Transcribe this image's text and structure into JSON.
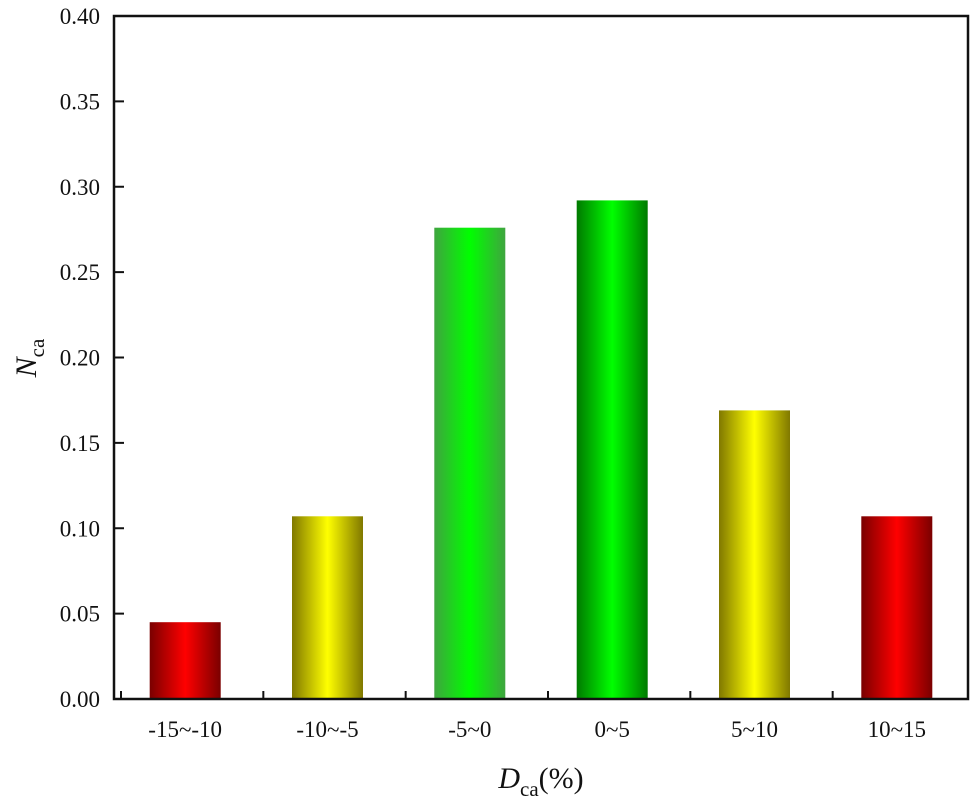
{
  "chart_data": {
    "type": "bar",
    "title": "",
    "xlabel": "D_ca(%)",
    "xlabel_main": "D",
    "xlabel_sub": "ca",
    "xlabel_suffix": "(%)",
    "ylabel": "N_ca",
    "ylabel_main": "N",
    "ylabel_sub": "ca",
    "ylim": [
      0,
      0.4
    ],
    "yticks": [
      "0.00",
      "0.05",
      "0.10",
      "0.15",
      "0.20",
      "0.25",
      "0.30",
      "0.35",
      "0.40"
    ],
    "categories": [
      "-15~-10",
      "-10~-5",
      "-5~0",
      "0~5",
      "5~10",
      "10~15"
    ],
    "values": [
      0.045,
      0.107,
      0.276,
      0.292,
      0.169,
      0.107
    ],
    "bar_colors": [
      "red",
      "yellow",
      "green",
      "green",
      "yellow",
      "red"
    ],
    "grid": false,
    "legend": null
  },
  "colors": {
    "red": {
      "edge": "#7a0000",
      "center": "#ff0000"
    },
    "yellow": {
      "edge": "#807800",
      "center": "#ffff00"
    },
    "green": {
      "edge": "#3fa53f",
      "center": "#00ff00"
    },
    "green_dark": {
      "edge": "#007a00",
      "center": "#00ff00"
    },
    "axis": "#111111"
  }
}
